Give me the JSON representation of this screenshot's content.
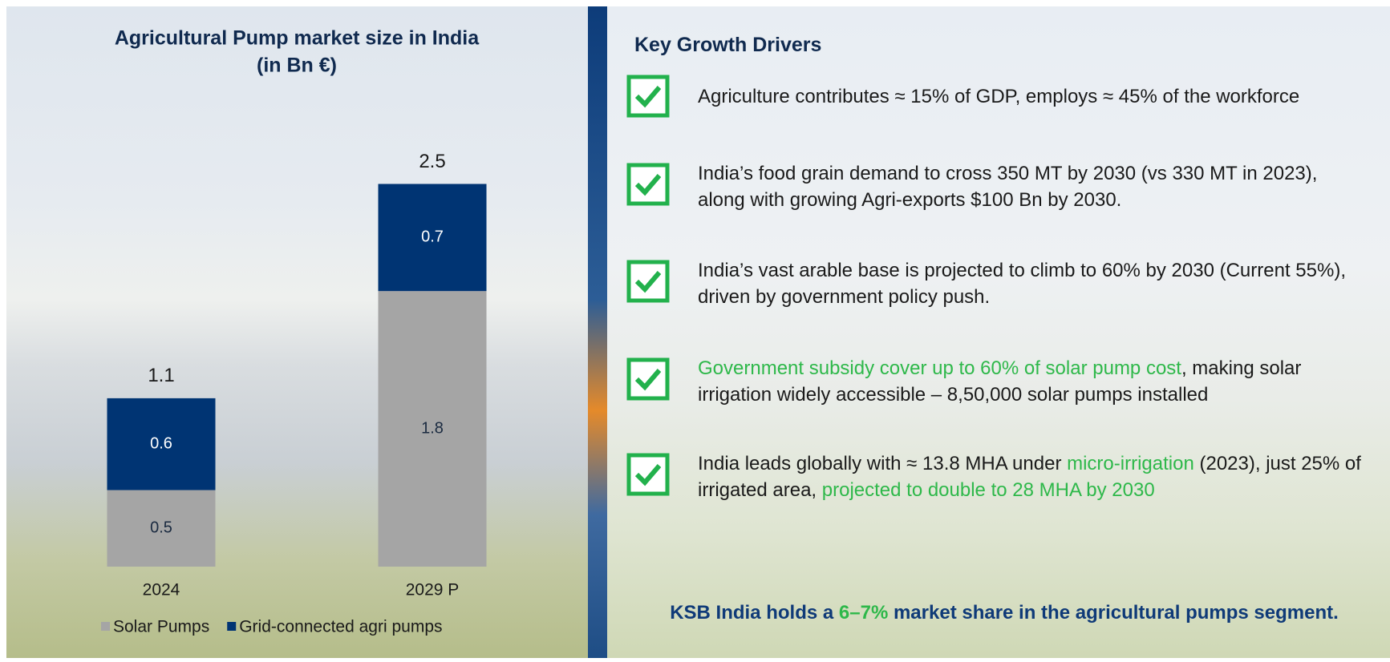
{
  "chart_data": {
    "type": "stacked-bar",
    "title": "Agricultural Pump market size in India",
    "subtitle": "(in Bn €)",
    "categories": [
      "2024",
      "2029 P"
    ],
    "series": [
      {
        "name": "Solar Pumps",
        "color": "#a5a5a5",
        "values": [
          0.5,
          1.8
        ]
      },
      {
        "name": "Grid-connected agri pumps",
        "color": "#003473",
        "values": [
          0.6,
          0.7
        ]
      }
    ],
    "totals": [
      1.1,
      2.5
    ]
  },
  "drivers": {
    "title": "Key Growth Drivers",
    "items": [
      {
        "parts": [
          {
            "text": "Agriculture contributes ≈ 15% of GDP, employs ≈ 45% of the workforce",
            "highlight": false
          }
        ]
      },
      {
        "parts": [
          {
            "text": "India’s food grain demand to cross 350 MT by 2030 (vs 330 MT in 2023), along with growing Agri-exports $100 Bn by 2030.",
            "highlight": false
          }
        ]
      },
      {
        "parts": [
          {
            "text": "India’s vast arable base is projected to climb to 60% by 2030 (Current 55%), driven by government policy push.",
            "highlight": false
          }
        ]
      },
      {
        "parts": [
          {
            "text": "Government subsidy cover up to 60% of solar pump cost",
            "highlight": true
          },
          {
            "text": ", making solar irrigation widely accessible – 8,50,000 solar pumps installed",
            "highlight": false
          }
        ]
      },
      {
        "parts": [
          {
            "text": "India leads globally with ≈ 13.8 MHA under ",
            "highlight": false
          },
          {
            "text": "micro-irrigation",
            "highlight": true
          },
          {
            "text": " (2023), just 25% of irrigated area, ",
            "highlight": false
          },
          {
            "text": "projected to double to 28 MHA by 2030",
            "highlight": true
          }
        ]
      }
    ],
    "statement": {
      "parts": [
        {
          "text": "KSB India holds a ",
          "highlight": false
        },
        {
          "text": "6–7%",
          "highlight": true
        },
        {
          "text": " market share in the agricultural pumps segment.",
          "highlight": false
        }
      ]
    }
  }
}
